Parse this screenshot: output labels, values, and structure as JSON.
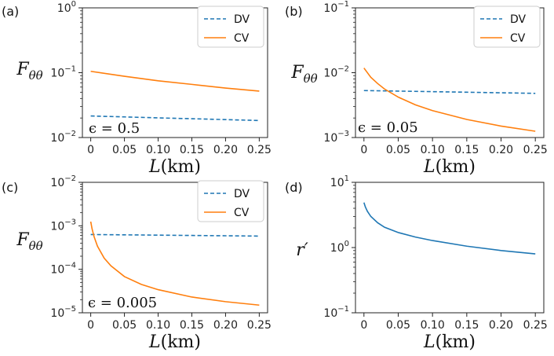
{
  "chart_data": [
    {
      "type": "line",
      "panel_label": "(a)",
      "ylabel": "F_θθ",
      "xlabel": "L(km)",
      "yscale": "log",
      "ylim": [
        0.01,
        1
      ],
      "xlim": [
        0,
        0.25
      ],
      "yticks_exp": [
        -2,
        -1,
        0
      ],
      "xticks": [
        "0",
        "0.05",
        "0.10",
        "0.15",
        "0.20",
        "0.25"
      ],
      "annotation": "ϵ = 0.5",
      "legend": {
        "position": "top-right",
        "entries": [
          "DV",
          "CV"
        ]
      },
      "series": [
        {
          "name": "DV",
          "color": "#1f77b4",
          "style": "dashed",
          "x": [
            0,
            0.05,
            0.1,
            0.15,
            0.2,
            0.25
          ],
          "y": [
            0.0215,
            0.0208,
            0.0201,
            0.0195,
            0.0189,
            0.0183
          ]
        },
        {
          "name": "CV",
          "color": "#ff7f0e",
          "style": "solid",
          "x": [
            0,
            0.05,
            0.1,
            0.15,
            0.2,
            0.25
          ],
          "y": [
            0.105,
            0.088,
            0.075,
            0.066,
            0.058,
            0.052
          ]
        }
      ]
    },
    {
      "type": "line",
      "panel_label": "(b)",
      "ylabel": "F_θθ",
      "xlabel": "L(km)",
      "yscale": "log",
      "ylim": [
        0.001,
        0.1
      ],
      "xlim": [
        0,
        0.25
      ],
      "yticks_exp": [
        -3,
        -2,
        -1
      ],
      "xticks": [
        "0",
        "0.05",
        "0.10",
        "0.15",
        "0.20",
        "0.25"
      ],
      "annotation": "ϵ = 0.05",
      "legend": {
        "position": "top-right",
        "entries": [
          "DV",
          "CV"
        ]
      },
      "series": [
        {
          "name": "DV",
          "color": "#1f77b4",
          "style": "dashed",
          "x": [
            0,
            0.05,
            0.1,
            0.15,
            0.2,
            0.25
          ],
          "y": [
            0.0053,
            0.0052,
            0.0051,
            0.005,
            0.0049,
            0.0048
          ]
        },
        {
          "name": "CV",
          "color": "#ff7f0e",
          "style": "solid",
          "x": [
            0,
            0.01,
            0.02,
            0.03,
            0.05,
            0.075,
            0.1,
            0.15,
            0.2,
            0.25
          ],
          "y": [
            0.0118,
            0.0085,
            0.0068,
            0.0056,
            0.0042,
            0.0032,
            0.0026,
            0.0019,
            0.0015,
            0.00125
          ]
        }
      ]
    },
    {
      "type": "line",
      "panel_label": "(c)",
      "ylabel": "F_θθ",
      "xlabel": "L(km)",
      "yscale": "log",
      "ylim": [
        1e-05,
        0.01
      ],
      "xlim": [
        0,
        0.25
      ],
      "yticks_exp": [
        -5,
        -4,
        -3,
        -2
      ],
      "xticks": [
        "0",
        "0.05",
        "0.10",
        "0.15",
        "0.20",
        "0.25"
      ],
      "annotation": "ϵ = 0.005",
      "legend": {
        "position": "top-right",
        "entries": [
          "DV",
          "CV"
        ]
      },
      "series": [
        {
          "name": "DV",
          "color": "#1f77b4",
          "style": "dashed",
          "x": [
            0,
            0.05,
            0.1,
            0.15,
            0.2,
            0.25
          ],
          "y": [
            0.00063,
            0.00062,
            0.00061,
            0.0006,
            0.00059,
            0.00058
          ]
        },
        {
          "name": "CV",
          "color": "#ff7f0e",
          "style": "solid",
          "x": [
            0,
            0.002,
            0.005,
            0.01,
            0.02,
            0.03,
            0.05,
            0.075,
            0.1,
            0.15,
            0.2,
            0.25
          ],
          "y": [
            0.00125,
            0.00085,
            0.00056,
            0.00034,
            0.00018,
            0.00012,
            6.8e-05,
            4.5e-05,
            3.4e-05,
            2.3e-05,
            1.8e-05,
            1.5e-05
          ]
        }
      ]
    },
    {
      "type": "line",
      "panel_label": "(d)",
      "ylabel": "r′",
      "xlabel": "L(km)",
      "yscale": "log",
      "ylim": [
        0.1,
        10
      ],
      "xlim": [
        0,
        0.25
      ],
      "yticks_exp": [
        -1,
        0,
        1
      ],
      "xticks": [
        "0",
        "0.05",
        "0.10",
        "0.15",
        "0.20",
        "0.25"
      ],
      "annotation": "",
      "legend": null,
      "series": [
        {
          "name": "r′",
          "color": "#1f77b4",
          "style": "solid",
          "x": [
            0,
            0.002,
            0.005,
            0.01,
            0.02,
            0.03,
            0.05,
            0.075,
            0.1,
            0.15,
            0.2,
            0.25
          ],
          "y": [
            4.9,
            4.2,
            3.6,
            3.0,
            2.4,
            2.05,
            1.7,
            1.45,
            1.28,
            1.05,
            0.9,
            0.8
          ]
        }
      ]
    }
  ]
}
